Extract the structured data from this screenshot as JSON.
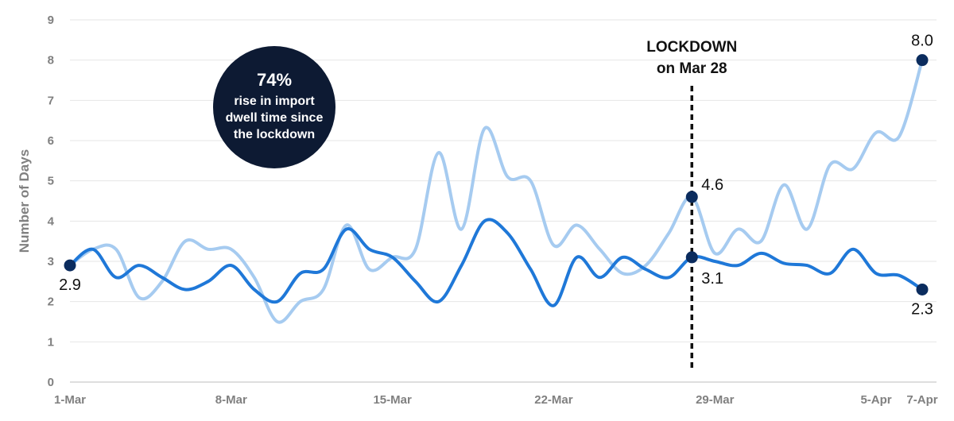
{
  "chart_data": {
    "type": "line",
    "ylabel": "Number of Days",
    "ylim": [
      0,
      9
    ],
    "yticks": [
      "0",
      "1",
      "2",
      "3",
      "4",
      "5",
      "6",
      "7",
      "8",
      "9"
    ],
    "xlim": [
      "2020-03-01",
      "2020-04-07"
    ],
    "xticks": [
      {
        "date": "2020-03-01",
        "label": "1-Mar"
      },
      {
        "date": "2020-03-08",
        "label": "8-Mar"
      },
      {
        "date": "2020-03-15",
        "label": "15-Mar"
      },
      {
        "date": "2020-03-22",
        "label": "22-Mar"
      },
      {
        "date": "2020-03-29",
        "label": "29-Mar"
      },
      {
        "date": "2020-04-05",
        "label": "5-Apr"
      },
      {
        "date": "2020-04-07",
        "label": "7-Apr"
      }
    ],
    "grid": true,
    "series": [
      {
        "color": "#a6cbf0",
        "points": [
          [
            "2020-03-01",
            2.9
          ],
          [
            "2020-03-02",
            3.3
          ],
          [
            "2020-03-03",
            3.3
          ],
          [
            "2020-03-04",
            2.1
          ],
          [
            "2020-03-05",
            2.5
          ],
          [
            "2020-03-06",
            3.5
          ],
          [
            "2020-03-07",
            3.3
          ],
          [
            "2020-03-08",
            3.3
          ],
          [
            "2020-03-09",
            2.6
          ],
          [
            "2020-03-10",
            1.5
          ],
          [
            "2020-03-11",
            2.0
          ],
          [
            "2020-03-12",
            2.3
          ],
          [
            "2020-03-13",
            3.9
          ],
          [
            "2020-03-14",
            2.8
          ],
          [
            "2020-03-15",
            3.1
          ],
          [
            "2020-03-16",
            3.3
          ],
          [
            "2020-03-17",
            5.7
          ],
          [
            "2020-03-18",
            3.8
          ],
          [
            "2020-03-19",
            6.3
          ],
          [
            "2020-03-20",
            5.1
          ],
          [
            "2020-03-21",
            5.0
          ],
          [
            "2020-03-22",
            3.4
          ],
          [
            "2020-03-23",
            3.9
          ],
          [
            "2020-03-24",
            3.3
          ],
          [
            "2020-03-25",
            2.7
          ],
          [
            "2020-03-26",
            2.9
          ],
          [
            "2020-03-27",
            3.7
          ],
          [
            "2020-03-28",
            4.6
          ],
          [
            "2020-03-29",
            3.2
          ],
          [
            "2020-03-30",
            3.8
          ],
          [
            "2020-03-31",
            3.5
          ],
          [
            "2020-04-01",
            4.9
          ],
          [
            "2020-04-02",
            3.8
          ],
          [
            "2020-04-03",
            5.4
          ],
          [
            "2020-04-04",
            5.3
          ],
          [
            "2020-04-05",
            6.2
          ],
          [
            "2020-04-06",
            6.1
          ],
          [
            "2020-04-07",
            8.0
          ]
        ]
      },
      {
        "color": "#1f78d8",
        "points": [
          [
            "2020-03-01",
            2.9
          ],
          [
            "2020-03-02",
            3.3
          ],
          [
            "2020-03-03",
            2.6
          ],
          [
            "2020-03-04",
            2.9
          ],
          [
            "2020-03-05",
            2.6
          ],
          [
            "2020-03-06",
            2.3
          ],
          [
            "2020-03-07",
            2.5
          ],
          [
            "2020-03-08",
            2.9
          ],
          [
            "2020-03-09",
            2.3
          ],
          [
            "2020-03-10",
            2.0
          ],
          [
            "2020-03-11",
            2.7
          ],
          [
            "2020-03-12",
            2.8
          ],
          [
            "2020-03-13",
            3.8
          ],
          [
            "2020-03-14",
            3.3
          ],
          [
            "2020-03-15",
            3.1
          ],
          [
            "2020-03-16",
            2.5
          ],
          [
            "2020-03-17",
            2.0
          ],
          [
            "2020-03-18",
            2.9
          ],
          [
            "2020-03-19",
            4.0
          ],
          [
            "2020-03-20",
            3.7
          ],
          [
            "2020-03-21",
            2.8
          ],
          [
            "2020-03-22",
            1.9
          ],
          [
            "2020-03-23",
            3.1
          ],
          [
            "2020-03-24",
            2.6
          ],
          [
            "2020-03-25",
            3.1
          ],
          [
            "2020-03-26",
            2.8
          ],
          [
            "2020-03-27",
            2.6
          ],
          [
            "2020-03-28",
            3.1
          ],
          [
            "2020-03-29",
            3.0
          ],
          [
            "2020-03-30",
            2.9
          ],
          [
            "2020-03-31",
            3.2
          ],
          [
            "2020-04-01",
            2.95
          ],
          [
            "2020-04-02",
            2.9
          ],
          [
            "2020-04-03",
            2.7
          ],
          [
            "2020-04-04",
            3.3
          ],
          [
            "2020-04-05",
            2.7
          ],
          [
            "2020-04-06",
            2.65
          ],
          [
            "2020-04-07",
            2.3
          ]
        ]
      }
    ],
    "markers": [
      {
        "date": "2020-03-01",
        "value": 2.9,
        "label": "2.9",
        "placement": "below"
      },
      {
        "date": "2020-03-28",
        "value": 4.6,
        "label": "4.6",
        "placement": "right"
      },
      {
        "date": "2020-03-28",
        "value": 3.1,
        "label": "3.1",
        "placement": "below-right"
      },
      {
        "date": "2020-04-07",
        "value": 8.0,
        "label": "8.0",
        "placement": "above"
      },
      {
        "date": "2020-04-07",
        "value": 2.3,
        "label": "2.3",
        "placement": "below"
      }
    ],
    "marker_color": "#0b2c5e",
    "lockdown": {
      "date": "2020-03-28",
      "label_line1": "LOCKDOWN",
      "label_line2": "on Mar 28"
    },
    "callout": {
      "big_text": "74%",
      "line1": "rise in import",
      "line2": "dwell time since",
      "line3": "the lockdown",
      "color": "#0d1a33"
    }
  }
}
